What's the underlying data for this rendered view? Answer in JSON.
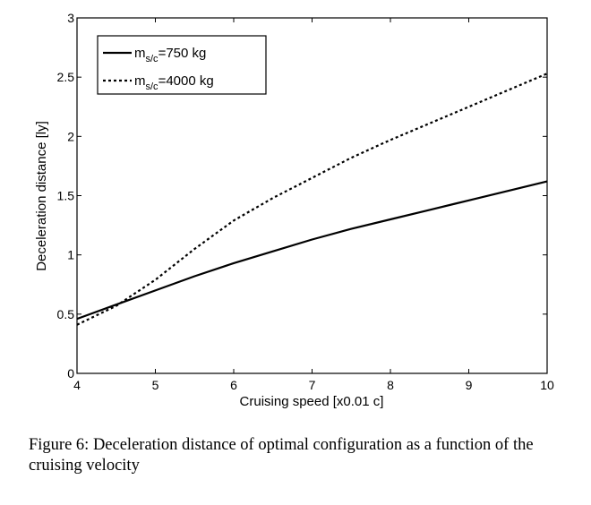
{
  "chart_data": {
    "type": "line",
    "title": "",
    "xlabel": "Cruising speed [x0.01 c]",
    "ylabel": "Deceleration distance [ly]",
    "xlim": [
      4,
      10
    ],
    "ylim": [
      0,
      3
    ],
    "xticks": [
      4,
      5,
      6,
      7,
      8,
      9,
      10
    ],
    "yticks": [
      0,
      0.5,
      1,
      1.5,
      2,
      2.5,
      3
    ],
    "ytick_labels": [
      "0",
      "0.5",
      "1",
      "1.5",
      "2",
      "2.5",
      "3"
    ],
    "grid": false,
    "legend_position": "top-left",
    "series": [
      {
        "name": "m_s/c=750 kg",
        "legend_main": "m",
        "legend_sub": "s/c",
        "legend_rest": "=750 kg",
        "style": "solid",
        "x": [
          4,
          4.5,
          5,
          5.5,
          6,
          6.5,
          7,
          7.5,
          8,
          8.5,
          9,
          9.5,
          10
        ],
        "y": [
          0.46,
          0.58,
          0.7,
          0.82,
          0.93,
          1.03,
          1.13,
          1.22,
          1.3,
          1.38,
          1.46,
          1.54,
          1.62
        ]
      },
      {
        "name": "m_s/c=4000 kg",
        "legend_main": "m",
        "legend_sub": "s/c",
        "legend_rest": "=4000 kg",
        "style": "dashed",
        "x": [
          4,
          4.5,
          5,
          5.5,
          6,
          6.5,
          7,
          7.5,
          8,
          8.5,
          9,
          9.5,
          10
        ],
        "y": [
          0.41,
          0.57,
          0.79,
          1.05,
          1.29,
          1.48,
          1.65,
          1.82,
          1.97,
          2.11,
          2.25,
          2.39,
          2.53
        ]
      }
    ]
  },
  "caption": "Figure 6: Deceleration distance of optimal configuration as a function of the cruising velocity"
}
